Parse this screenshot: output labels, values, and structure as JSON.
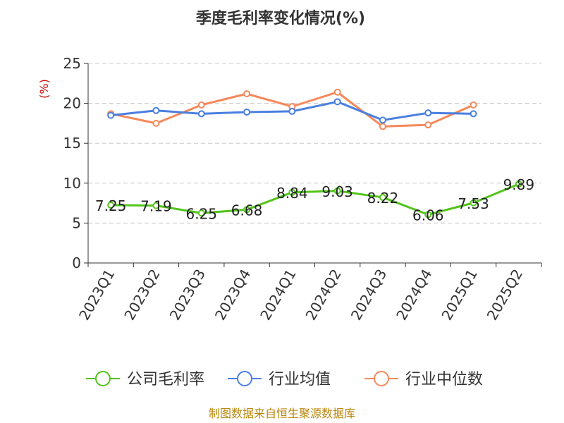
{
  "chart_data": {
    "type": "line",
    "title": "季度毛利率变化情况(%)",
    "ylabel": "(%)",
    "ylim": [
      0,
      25
    ],
    "yticks": [
      0,
      5,
      10,
      15,
      20,
      25
    ],
    "grid": true,
    "legend_position": "bottom",
    "categories": [
      "2023Q1",
      "2023Q2",
      "2023Q3",
      "2023Q4",
      "2024Q1",
      "2024Q2",
      "2024Q3",
      "2024Q4",
      "2025Q1",
      "2025Q2"
    ],
    "series": [
      {
        "name": "公司毛利率",
        "color": "#52c41a",
        "values": [
          7.25,
          7.19,
          6.25,
          6.68,
          8.84,
          9.03,
          8.22,
          6.06,
          7.53,
          9.89
        ],
        "labels": [
          "7.25",
          "7.19",
          "6.25",
          "6.68",
          "8.84",
          "9.03",
          "8.22",
          "6.06",
          "7.53",
          "9.89"
        ]
      },
      {
        "name": "行业均值",
        "color": "#4a7fe0",
        "values": [
          18.5,
          19.1,
          18.7,
          18.9,
          19.0,
          20.2,
          17.9,
          18.8,
          18.7,
          null
        ]
      },
      {
        "name": "行业中位数",
        "color": "#f5885a",
        "values": [
          18.7,
          17.5,
          19.8,
          21.2,
          19.6,
          21.4,
          17.1,
          17.3,
          19.8,
          null
        ]
      }
    ]
  },
  "source": "制图数据来自恒生聚源数据库"
}
